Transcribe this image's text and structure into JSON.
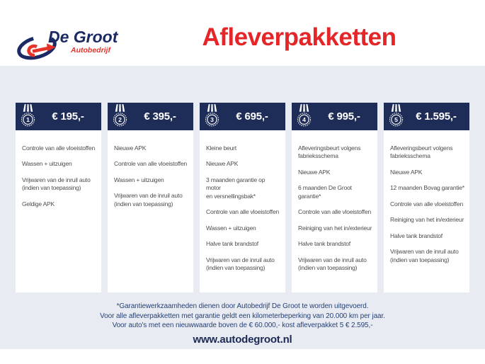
{
  "brand": {
    "name": "De Groot",
    "tagline": "Autobedrijf"
  },
  "page_title": "Afleverpakketten",
  "colors": {
    "navy": "#1e2c58",
    "red": "#e52629",
    "background_band": "#e9ebf2",
    "body_text": "#4d4d4d",
    "footnote_text": "#274276"
  },
  "packages": [
    {
      "number": "1",
      "price": "€ 195,-",
      "items": [
        "Controle van alle vloeistoffen",
        "Wassen + uitzuigen",
        "Vrijwaren van de inruil auto\n(indien van toepassing)",
        "Geldige APK"
      ]
    },
    {
      "number": "2",
      "price": "€ 395,-",
      "items": [
        "Nieuwe APK",
        "Controle van alle vloeistoffen",
        "Wassen + uitzuigen",
        "Vrijwaren van de inruil auto\n(indien van toepassing)"
      ]
    },
    {
      "number": "3",
      "price": "€ 695,-",
      "items": [
        "Kleine beurt",
        "Nieuwe APK",
        "3 maanden garantie op motor\nen versnellingsbak*",
        "Controle van alle vloeistoffen",
        "Wassen + uitzuigen",
        "Halve tank brandstof",
        "Vrijwaren van de inruil auto\n(indien van toepassing)"
      ]
    },
    {
      "number": "4",
      "price": "€ 995,-",
      "items": [
        "Afleveringsbeurt volgens\nfabrieksschema",
        "Nieuwe APK",
        "6 maanden De Groot garantie*",
        "Controle van alle vloeistoffen",
        "Reiniging van het in/exterieur",
        "Halve tank brandstof",
        "Vrijwaren van de inruil auto\n(indien van toepassing)"
      ]
    },
    {
      "number": "5",
      "price": "€ 1.595,-",
      "items": [
        "Afleveringsbeurt volgens\nfabrieksschema",
        "Nieuwe APK",
        "12 maanden Bovag garantie*",
        "Controle van alle vloeistoffen",
        "Reiniging van het in/exterieur",
        "Halve tank brandstof",
        "Vrijwaren van de inruil auto\n(indien van toepassing)"
      ]
    }
  ],
  "footnotes": [
    "*Garantiewerkzaamheden dienen door Autobedrijf De Groot te worden uitgevoerd.",
    "Voor alle afleverpakketten met garantie geldt een kilometerbeperking van 20.000 km per jaar.",
    "Voor auto's met een nieuwwaarde boven de € 60.000,- kost afleverpakket 5 € 2.595,-"
  ],
  "website": "www.autodegroot.nl"
}
